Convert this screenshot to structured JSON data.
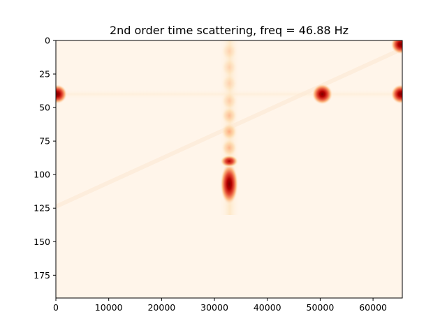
{
  "chart_data": {
    "type": "heatmap",
    "title": "2nd order time scattering, freq = 46.88 Hz",
    "xlabel": "",
    "ylabel": "",
    "xlim": [
      0,
      65536
    ],
    "ylim": [
      192,
      0
    ],
    "x_ticks": [
      0,
      10000,
      20000,
      30000,
      40000,
      50000,
      60000
    ],
    "x_tick_labels": [
      "0",
      "10000",
      "20000",
      "30000",
      "40000",
      "50000",
      "60000"
    ],
    "y_ticks": [
      0,
      25,
      50,
      75,
      100,
      125,
      150,
      175
    ],
    "y_tick_labels": [
      "0",
      "25",
      "50",
      "75",
      "100",
      "125",
      "150",
      "175"
    ],
    "colormap": "OrRd",
    "background_color": "#fff5ea",
    "grid": false,
    "hotspots": [
      {
        "x": 300,
        "y": 40,
        "intensity": 0.85
      },
      {
        "x": 50400,
        "y": 40,
        "intensity": 1.0
      },
      {
        "x": 65200,
        "y": 40,
        "intensity": 0.85
      },
      {
        "x": 65200,
        "y": 3,
        "intensity": 0.85
      },
      {
        "x": 32800,
        "y": 107,
        "intensity": 1.0
      },
      {
        "x": 32800,
        "y": 90,
        "intensity": 0.55
      },
      {
        "x": 32800,
        "y": 80,
        "intensity": 0.25
      },
      {
        "x": 32800,
        "y": 68,
        "intensity": 0.3
      },
      {
        "x": 32800,
        "y": 56,
        "intensity": 0.22
      },
      {
        "x": 32800,
        "y": 45,
        "intensity": 0.15
      },
      {
        "x": 32800,
        "y": 32,
        "intensity": 0.1
      },
      {
        "x": 32800,
        "y": 20,
        "intensity": 0.08
      },
      {
        "x": 32800,
        "y": 8,
        "intensity": 0.06
      }
    ]
  }
}
